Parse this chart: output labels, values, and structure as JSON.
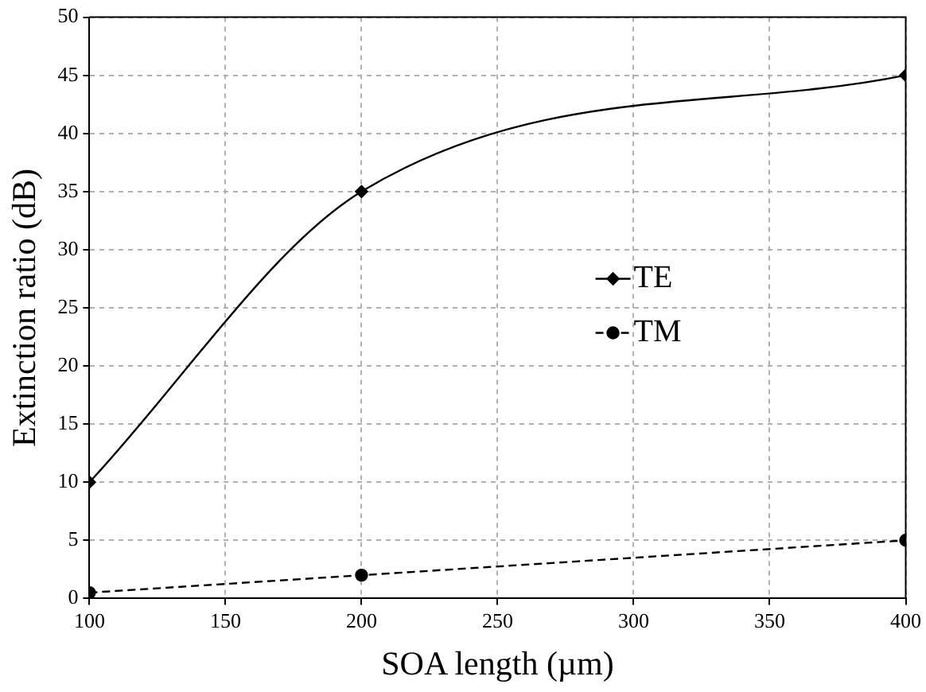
{
  "chart_data": {
    "type": "line",
    "xlabel": "SOA length (µm)",
    "ylabel": "Extinction ratio (dB)",
    "x": [
      100,
      200,
      400
    ],
    "series": [
      {
        "name": "TE",
        "color": "#000000",
        "values": [
          10,
          35,
          45
        ],
        "marker": "diamond",
        "line_style": "solid"
      },
      {
        "name": "TM",
        "color": "#000000",
        "values": [
          0.5,
          2,
          5
        ],
        "marker": "circle",
        "line_style": "dashed"
      }
    ],
    "xlim": [
      100,
      400
    ],
    "xticks": [
      100,
      150,
      200,
      250,
      300,
      350,
      400
    ],
    "ylim": [
      0,
      50
    ],
    "yticks": [
      0,
      5,
      10,
      15,
      20,
      25,
      30,
      35,
      40,
      45,
      50
    ],
    "grid": true,
    "legend": "right"
  }
}
